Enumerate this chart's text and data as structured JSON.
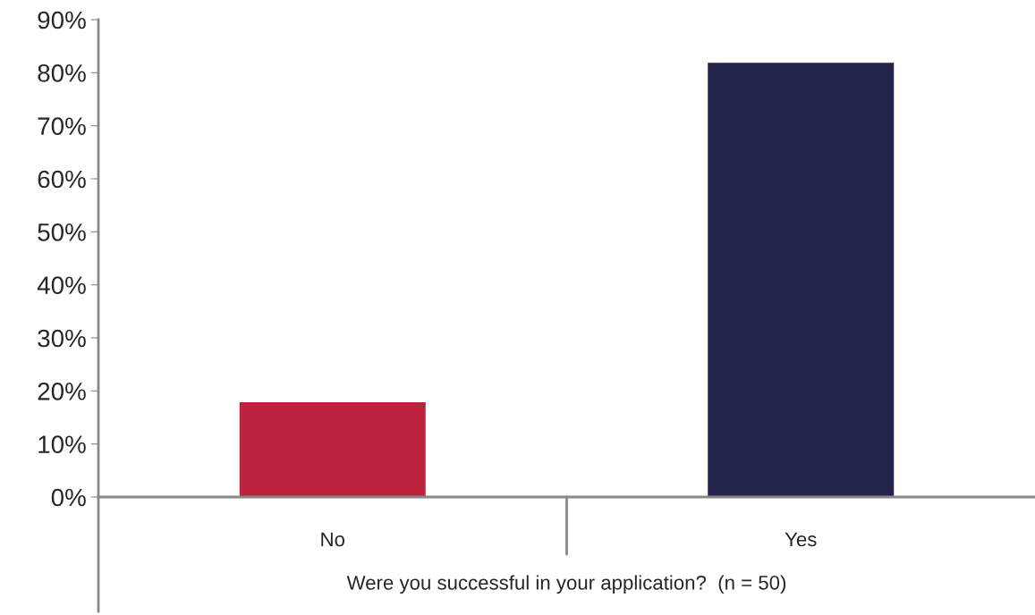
{
  "chart_data": {
    "type": "bar",
    "xlabel": "Were you successful in your application?  (n = 50)",
    "categories": [
      "No",
      "Yes"
    ],
    "colors": [
      "#bc223d",
      "#22244a"
    ],
    "values": [
      18,
      82
    ],
    "ylim": [
      0,
      90
    ],
    "yticks": [
      {
        "value": 0,
        "label": "0%"
      },
      {
        "value": 10,
        "label": "10%"
      },
      {
        "value": 20,
        "label": "20%"
      },
      {
        "value": 30,
        "label": "30%"
      },
      {
        "value": 40,
        "label": "40%"
      },
      {
        "value": 50,
        "label": "50%"
      },
      {
        "value": 60,
        "label": "60%"
      },
      {
        "value": 70,
        "label": "70%"
      },
      {
        "value": 80,
        "label": "80%"
      },
      {
        "value": 90,
        "label": "90%"
      }
    ],
    "grid": false,
    "legend": false
  }
}
